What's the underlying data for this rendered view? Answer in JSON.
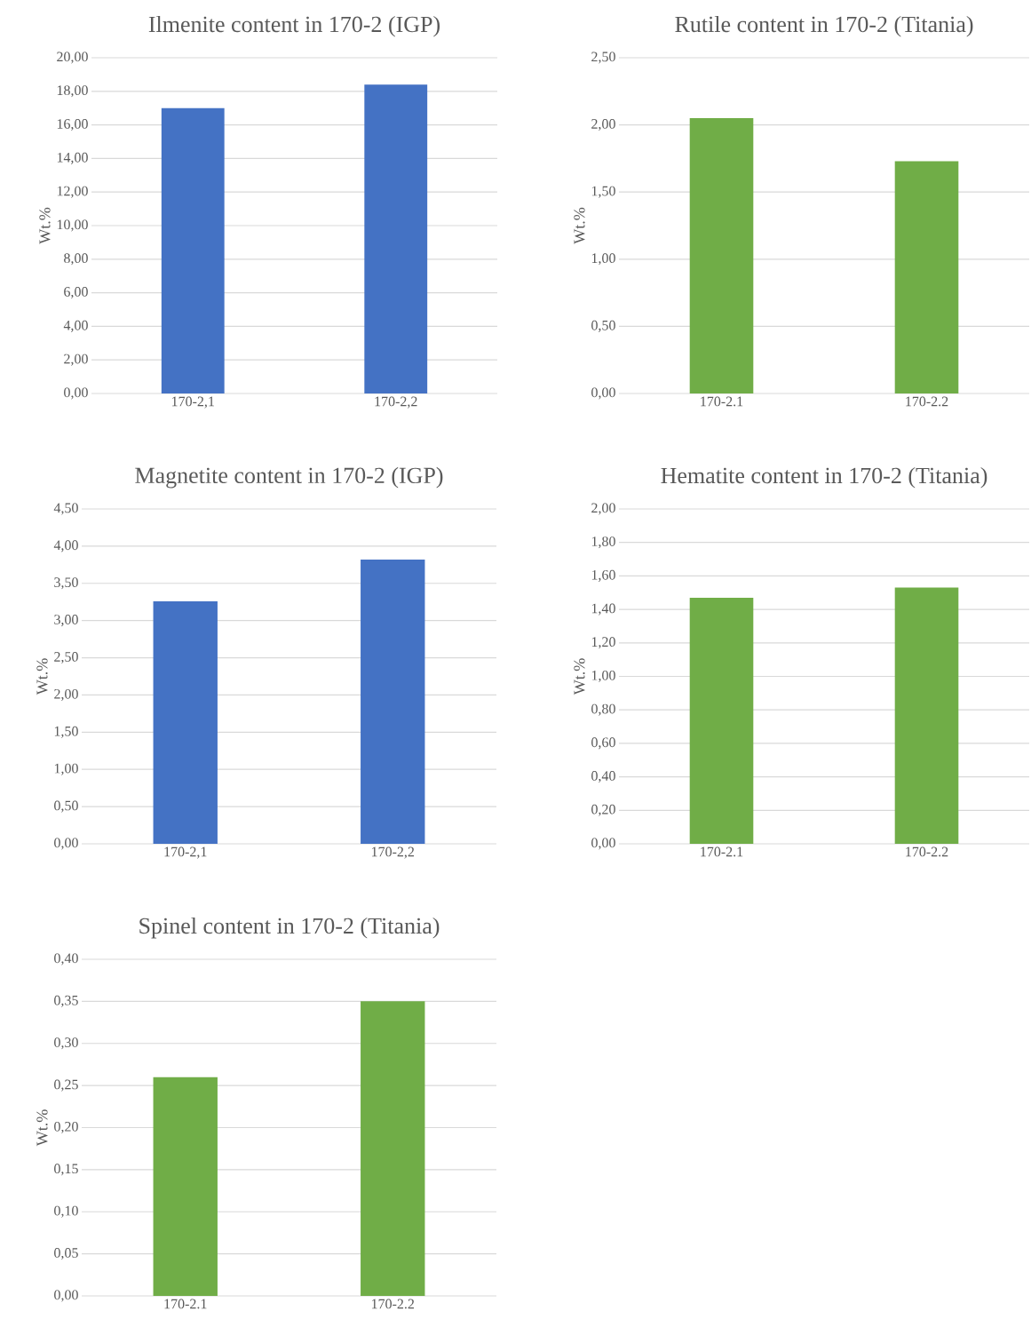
{
  "chart_data": [
    {
      "type": "bar",
      "title": "Ilmenite content in 170-2 (IGP)",
      "ylabel": "Wt.%",
      "categories": [
        "170-2,1",
        "170-2,2"
      ],
      "values": [
        17.0,
        18.4
      ],
      "color": "#4472c4",
      "ylim": [
        0,
        20
      ],
      "yticks": [
        {
          "value": 0,
          "label": "0,00"
        },
        {
          "value": 2,
          "label": "2,00"
        },
        {
          "value": 4,
          "label": "4,00"
        },
        {
          "value": 6,
          "label": "6,00"
        },
        {
          "value": 8,
          "label": "8,00"
        },
        {
          "value": 10,
          "label": "10,00"
        },
        {
          "value": 12,
          "label": "12,00"
        },
        {
          "value": 14,
          "label": "14,00"
        },
        {
          "value": 16,
          "label": "16,00"
        },
        {
          "value": 18,
          "label": "18,00"
        },
        {
          "value": 20,
          "label": "20,00"
        }
      ],
      "grid": "y"
    },
    {
      "type": "bar",
      "title": "Rutile content in 170-2 (Titania)",
      "ylabel": "Wt.%",
      "categories": [
        "170-2.1",
        "170-2.2"
      ],
      "values": [
        2.05,
        1.73
      ],
      "color": "#70ad47",
      "ylim": [
        0,
        2.5
      ],
      "yticks": [
        {
          "value": 0,
          "label": "0,00"
        },
        {
          "value": 0.5,
          "label": "0,50"
        },
        {
          "value": 1,
          "label": "1,00"
        },
        {
          "value": 1.5,
          "label": "1,50"
        },
        {
          "value": 2,
          "label": "2,00"
        },
        {
          "value": 2.5,
          "label": "2,50"
        }
      ],
      "grid": "y"
    },
    {
      "type": "bar",
      "title": "Magnetite content in 170-2 (IGP)",
      "ylabel": "Wt.%",
      "categories": [
        "170-2,1",
        "170-2,2"
      ],
      "values": [
        3.26,
        3.82
      ],
      "color": "#4472c4",
      "ylim": [
        0,
        4.5
      ],
      "yticks": [
        {
          "value": 0,
          "label": "0,00"
        },
        {
          "value": 0.5,
          "label": "0,50"
        },
        {
          "value": 1,
          "label": "1,00"
        },
        {
          "value": 1.5,
          "label": "1,50"
        },
        {
          "value": 2,
          "label": "2,00"
        },
        {
          "value": 2.5,
          "label": "2,50"
        },
        {
          "value": 3,
          "label": "3,00"
        },
        {
          "value": 3.5,
          "label": "3,50"
        },
        {
          "value": 4,
          "label": "4,00"
        },
        {
          "value": 4.5,
          "label": "4,50"
        }
      ],
      "grid": "y"
    },
    {
      "type": "bar",
      "title": "Hematite content in 170-2 (Titania)",
      "ylabel": "Wt.%",
      "categories": [
        "170-2.1",
        "170-2.2"
      ],
      "values": [
        1.47,
        1.53
      ],
      "color": "#70ad47",
      "ylim": [
        0,
        2
      ],
      "yticks": [
        {
          "value": 0,
          "label": "0,00"
        },
        {
          "value": 0.2,
          "label": "0,20"
        },
        {
          "value": 0.4,
          "label": "0,40"
        },
        {
          "value": 0.6,
          "label": "0,60"
        },
        {
          "value": 0.8,
          "label": "0,80"
        },
        {
          "value": 1,
          "label": "1,00"
        },
        {
          "value": 1.2,
          "label": "1,20"
        },
        {
          "value": 1.4,
          "label": "1,40"
        },
        {
          "value": 1.6,
          "label": "1,60"
        },
        {
          "value": 1.8,
          "label": "1,80"
        },
        {
          "value": 2,
          "label": "2,00"
        }
      ],
      "grid": "y"
    },
    {
      "type": "bar",
      "title": "Spinel content in 170-2 (Titania)",
      "ylabel": "Wt.%",
      "categories": [
        "170-2.1",
        "170-2.2"
      ],
      "values": [
        0.26,
        0.35
      ],
      "color": "#70ad47",
      "ylim": [
        0,
        0.4
      ],
      "yticks": [
        {
          "value": 0,
          "label": "0,00"
        },
        {
          "value": 0.05,
          "label": "0,05"
        },
        {
          "value": 0.1,
          "label": "0,10"
        },
        {
          "value": 0.15,
          "label": "0,15"
        },
        {
          "value": 0.2,
          "label": "0,20"
        },
        {
          "value": 0.25,
          "label": "0,25"
        },
        {
          "value": 0.3,
          "label": "0,30"
        },
        {
          "value": 0.35,
          "label": "0,35"
        },
        {
          "value": 0.4,
          "label": "0,40"
        }
      ],
      "grid": "y"
    }
  ]
}
